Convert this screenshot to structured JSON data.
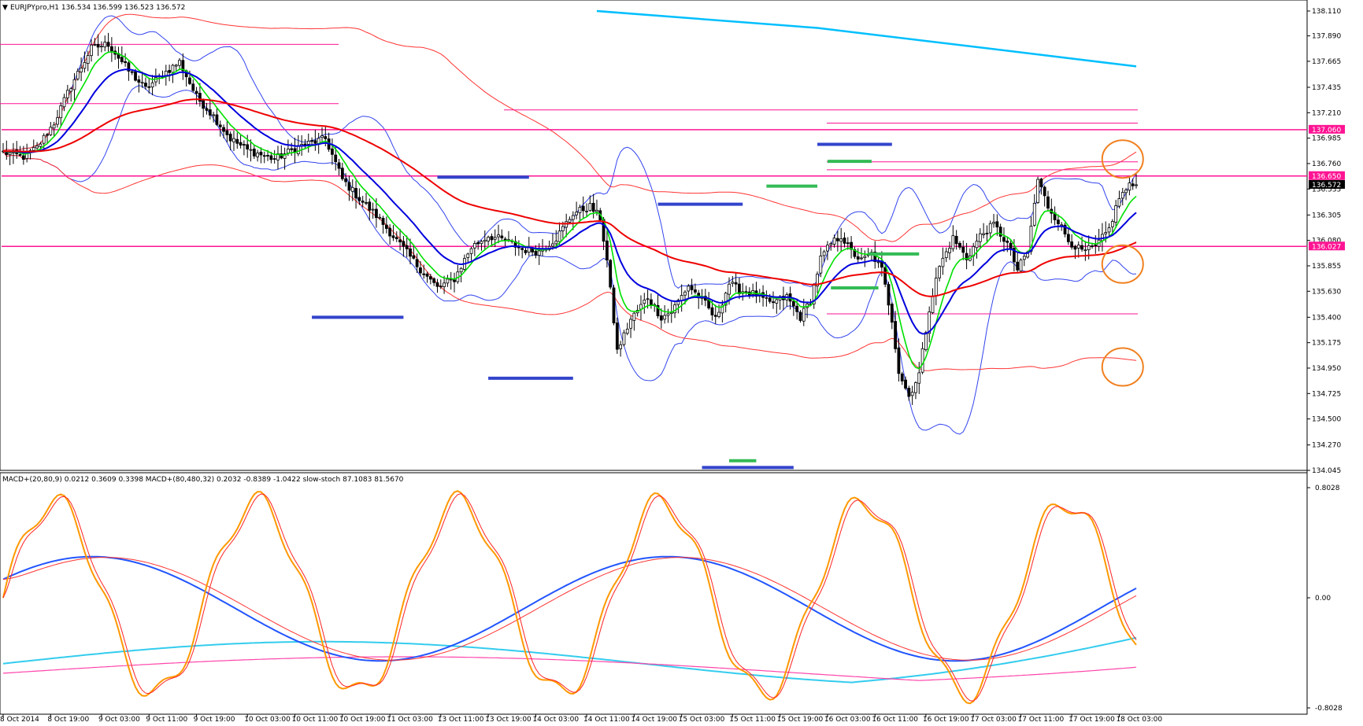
{
  "header": {
    "symbol_line": "EURJPYpro,H1  136.534 136.599 136.523 136.572",
    "indicator_line": "MACD+(20,80,9) 0.0212 0.3609 0.3398   MACD+(80,480,32) 0.2032 -0.8389 -1.0422   slow-stoch 87.1083 81.5670"
  },
  "colors": {
    "background": "#ffffff",
    "bull_candle": "#ffffff",
    "bear_candle": "#000000",
    "ema_fast": "#00e000",
    "ema_mid": "#0000dd",
    "ema_slow": "#ee0000",
    "ema_long": "#00bfff",
    "bb_inner": "#3344ee",
    "bb_outer": "#ff3333",
    "level_line": "#ff1493",
    "support_marker": "#33bb55",
    "resistance_marker": "#3344cc",
    "highlight_circle": "#f08020",
    "stoch": "#ff9900",
    "stoch_signal": "#ff2222",
    "macd_long": "#2255ff",
    "macd_long_signal": "#ff3333",
    "macd_xlong": "#33ccee",
    "macd_xlong_signal": "#ff44aa"
  },
  "chart_data": [
    {
      "type": "candlestick",
      "symbol": "EURJPYpro",
      "timeframe": "H1",
      "ohlc_last": {
        "open": 136.534,
        "high": 136.599,
        "low": 136.523,
        "close": 136.572
      },
      "ylim": [
        134.045,
        138.11
      ],
      "y_ticks": [
        "138.110",
        "137.890",
        "137.665",
        "137.435",
        "137.210",
        "136.985",
        "136.760",
        "136.535",
        "136.305",
        "136.080",
        "135.855",
        "135.630",
        "135.400",
        "135.175",
        "134.950",
        "134.725",
        "134.500",
        "134.270",
        "134.045"
      ],
      "x_ticks": [
        "8 Oct 2014",
        "8 Oct 19:00",
        "9 Oct 03:00",
        "9 Oct 11:00",
        "9 Oct 19:00",
        "10 Oct 03:00",
        "10 Oct 11:00",
        "10 Oct 19:00",
        "11 Oct 03:00",
        "13 Oct 11:00",
        "13 Oct 19:00",
        "14 Oct 03:00",
        "14 Oct 11:00",
        "14 Oct 19:00",
        "15 Oct 03:00",
        "15 Oct 11:00",
        "15 Oct 19:00",
        "16 Oct 03:00",
        "16 Oct 11:00",
        "16 Oct 19:00",
        "17 Oct 03:00",
        "17 Oct 11:00",
        "17 Oct 19:00",
        "18 Oct 03:00"
      ],
      "price_labels": [
        {
          "text": "137.060",
          "value": 137.06,
          "color": "#ff1493"
        },
        {
          "text": "136.650",
          "value": 136.65,
          "color": "#ff1493"
        },
        {
          "text": "136.572",
          "value": 136.572,
          "color": "#000000"
        },
        {
          "text": "136.027",
          "value": 136.027,
          "color": "#ff1493"
        }
      ],
      "close_anchors": [
        [
          0,
          136.86
        ],
        [
          6,
          136.82
        ],
        [
          10,
          136.9
        ],
        [
          15,
          137.12
        ],
        [
          20,
          137.45
        ],
        [
          26,
          137.78
        ],
        [
          31,
          137.82
        ],
        [
          37,
          137.58
        ],
        [
          42,
          137.42
        ],
        [
          47,
          137.55
        ],
        [
          52,
          137.66
        ],
        [
          57,
          137.35
        ],
        [
          62,
          137.18
        ],
        [
          67,
          136.98
        ],
        [
          72,
          136.88
        ],
        [
          80,
          136.8
        ],
        [
          88,
          136.92
        ],
        [
          95,
          136.98
        ],
        [
          100,
          136.62
        ],
        [
          105,
          136.45
        ],
        [
          110,
          136.3
        ],
        [
          116,
          136.08
        ],
        [
          122,
          135.86
        ],
        [
          128,
          135.66
        ],
        [
          133,
          135.74
        ],
        [
          138,
          136.02
        ],
        [
          143,
          136.12
        ],
        [
          148,
          136.08
        ],
        [
          153,
          136.0
        ],
        [
          158,
          135.98
        ],
        [
          163,
          136.1
        ],
        [
          168,
          136.32
        ],
        [
          173,
          136.38
        ],
        [
          176,
          136.28
        ],
        [
          178,
          135.9
        ],
        [
          181,
          135.1
        ],
        [
          185,
          135.38
        ],
        [
          190,
          135.58
        ],
        [
          194,
          135.4
        ],
        [
          197,
          135.45
        ],
        [
          202,
          135.68
        ],
        [
          207,
          135.52
        ],
        [
          210,
          135.38
        ],
        [
          214,
          135.7
        ],
        [
          217,
          135.64
        ],
        [
          222,
          135.6
        ],
        [
          226,
          135.52
        ],
        [
          231,
          135.58
        ],
        [
          235,
          135.4
        ],
        [
          238,
          135.55
        ],
        [
          241,
          135.92
        ],
        [
          244,
          136.05
        ],
        [
          247,
          136.12
        ],
        [
          250,
          135.98
        ],
        [
          253,
          135.9
        ],
        [
          256,
          135.96
        ],
        [
          259,
          135.82
        ],
        [
          262,
          135.38
        ],
        [
          264,
          134.92
        ],
        [
          267,
          134.7
        ],
        [
          270,
          134.9
        ],
        [
          273,
          135.48
        ],
        [
          276,
          135.85
        ],
        [
          280,
          136.1
        ],
        [
          284,
          135.92
        ],
        [
          288,
          136.12
        ],
        [
          292,
          136.22
        ],
        [
          296,
          136.05
        ],
        [
          299,
          135.82
        ],
        [
          302,
          135.98
        ],
        [
          305,
          136.62
        ],
        [
          308,
          136.38
        ],
        [
          311,
          136.25
        ],
        [
          314,
          136.08
        ],
        [
          318,
          135.98
        ],
        [
          322,
          136.02
        ],
        [
          326,
          136.18
        ],
        [
          329,
          136.46
        ],
        [
          332,
          136.56
        ],
        [
          334,
          136.57
        ]
      ],
      "levels": [
        {
          "value": 137.06,
          "style": "thick"
        },
        {
          "value": 136.65,
          "style": "thick"
        },
        {
          "value": 136.027,
          "style": "thick"
        },
        {
          "value": 137.815,
          "style": "segment"
        },
        {
          "value": 137.29,
          "style": "segment"
        },
        {
          "value": 137.235,
          "style": "segment"
        },
        {
          "value": 137.118,
          "style": "segment"
        },
        {
          "value": 136.775,
          "style": "segment"
        },
        {
          "value": 136.705,
          "style": "segment"
        },
        {
          "value": 135.43,
          "style": "segment"
        }
      ],
      "markers": [
        {
          "kind": "resistance",
          "value": 135.4
        },
        {
          "kind": "resistance",
          "value": 134.86
        },
        {
          "kind": "resistance",
          "value": 136.64
        },
        {
          "kind": "resistance",
          "value": 136.4
        },
        {
          "kind": "resistance",
          "value": 134.07
        },
        {
          "kind": "resistance",
          "value": 136.93
        },
        {
          "kind": "support",
          "value": 134.13
        },
        {
          "kind": "support",
          "value": 136.56
        },
        {
          "kind": "support",
          "value": 136.78
        },
        {
          "kind": "support",
          "value": 135.96
        },
        {
          "kind": "support",
          "value": 135.66
        }
      ]
    },
    {
      "type": "line",
      "indicator": "MACD+ and slow-stoch",
      "ylim": [
        -0.8028,
        0.8028
      ],
      "y_ticks": [
        "0.8028",
        "0.00",
        "-0.8028"
      ],
      "series_values": {
        "MACD+(20,80,9)": 0.0212,
        "MACD+(20,80,9) signal": 0.3609,
        "MACD+(20,80,9) hist": 0.3398,
        "MACD+(80,480,32)": 0.2032,
        "MACD+(80,480,32) signal": -0.8389,
        "MACD+(80,480,32) hist": -1.0422,
        "slow-stoch %K": 87.1083,
        "slow-stoch %D": 81.567
      }
    }
  ]
}
